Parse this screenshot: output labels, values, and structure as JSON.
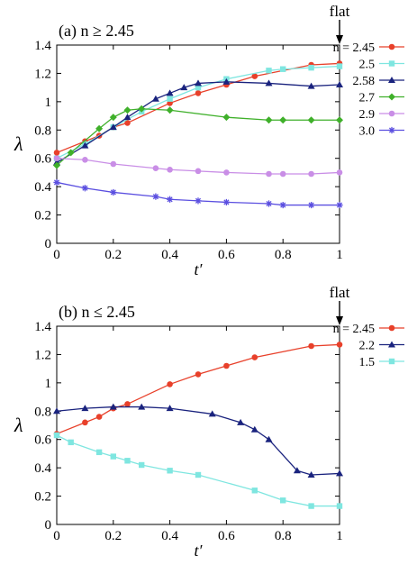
{
  "chart_data": [
    {
      "type": "line",
      "title": "(a) n ≥ 2.45",
      "annotation": "flat",
      "xlabel": "t′",
      "ylabel": "λ",
      "xlim": [
        0,
        1
      ],
      "ylim": [
        0,
        1.4
      ],
      "xticks": [
        0,
        0.2,
        0.4,
        0.6,
        0.8,
        1
      ],
      "yticks": [
        0,
        0.2,
        0.4,
        0.6,
        0.8,
        1,
        1.2,
        1.4
      ],
      "xtick_labels": [
        "0",
        "0.2",
        "0.4",
        "0.6",
        "0.8",
        "1"
      ],
      "ytick_labels": [
        "0",
        "0.2",
        "0.4",
        "0.6",
        "0.8",
        "1",
        "1.2",
        "1.4"
      ],
      "legend_position": "right",
      "series": [
        {
          "name": "n = 2.45",
          "color": "#e8402a",
          "marker": "circle",
          "x": [
            0,
            0.1,
            0.15,
            0.2,
            0.25,
            0.4,
            0.5,
            0.6,
            0.7,
            0.9,
            1
          ],
          "y": [
            0.64,
            0.72,
            0.76,
            0.82,
            0.85,
            0.99,
            1.06,
            1.12,
            1.18,
            1.26,
            1.27
          ]
        },
        {
          "name": "2.5",
          "color": "#7fe6e0",
          "marker": "square",
          "x": [
            0,
            0.1,
            0.2,
            0.3,
            0.4,
            0.5,
            0.6,
            0.75,
            0.8,
            0.9,
            1
          ],
          "y": [
            0.6,
            0.7,
            0.82,
            0.93,
            1.02,
            1.1,
            1.16,
            1.22,
            1.23,
            1.24,
            1.25
          ]
        },
        {
          "name": "2.58",
          "color": "#1a237e",
          "marker": "triangle",
          "x": [
            0,
            0.1,
            0.2,
            0.25,
            0.35,
            0.4,
            0.45,
            0.5,
            0.6,
            0.75,
            0.9,
            1
          ],
          "y": [
            0.57,
            0.69,
            0.82,
            0.89,
            1.02,
            1.06,
            1.1,
            1.13,
            1.14,
            1.13,
            1.11,
            1.12
          ]
        },
        {
          "name": "2.7",
          "color": "#3fb02a",
          "marker": "diamond",
          "x": [
            0,
            0.05,
            0.15,
            0.2,
            0.25,
            0.3,
            0.4,
            0.6,
            0.75,
            0.8,
            0.9,
            1
          ],
          "y": [
            0.55,
            0.64,
            0.81,
            0.89,
            0.94,
            0.95,
            0.94,
            0.89,
            0.87,
            0.87,
            0.87,
            0.87
          ]
        },
        {
          "name": "2.9",
          "color": "#c98ee6",
          "marker": "circle",
          "x": [
            0,
            0.1,
            0.2,
            0.35,
            0.4,
            0.5,
            0.6,
            0.75,
            0.8,
            0.9,
            1
          ],
          "y": [
            0.6,
            0.59,
            0.56,
            0.53,
            0.52,
            0.51,
            0.5,
            0.49,
            0.49,
            0.49,
            0.5
          ]
        },
        {
          "name": "3.0",
          "color": "#5b4fe0",
          "marker": "asterisk",
          "x": [
            0,
            0.1,
            0.2,
            0.35,
            0.4,
            0.5,
            0.6,
            0.75,
            0.8,
            0.9,
            1
          ],
          "y": [
            0.43,
            0.39,
            0.36,
            0.33,
            0.31,
            0.3,
            0.29,
            0.28,
            0.27,
            0.27,
            0.27
          ]
        }
      ]
    },
    {
      "type": "line",
      "title": "(b) n ≤ 2.45",
      "annotation": "flat",
      "xlabel": "t′",
      "ylabel": "λ",
      "xlim": [
        0,
        1
      ],
      "ylim": [
        0,
        1.4
      ],
      "xticks": [
        0,
        0.2,
        0.4,
        0.6,
        0.8,
        1
      ],
      "yticks": [
        0,
        0.2,
        0.4,
        0.6,
        0.8,
        1,
        1.2,
        1.4
      ],
      "xtick_labels": [
        "0",
        "0.2",
        "0.4",
        "0.6",
        "0.8",
        "1"
      ],
      "ytick_labels": [
        "0",
        "0.2",
        "0.4",
        "0.6",
        "0.8",
        "1",
        "1.2",
        "1.4"
      ],
      "legend_position": "right",
      "series": [
        {
          "name": "n = 2.45",
          "color": "#e8402a",
          "marker": "circle",
          "x": [
            0,
            0.1,
            0.15,
            0.2,
            0.25,
            0.4,
            0.5,
            0.6,
            0.7,
            0.9,
            1
          ],
          "y": [
            0.64,
            0.72,
            0.76,
            0.82,
            0.85,
            0.99,
            1.06,
            1.12,
            1.18,
            1.26,
            1.27
          ]
        },
        {
          "name": "2.2",
          "color": "#1a237e",
          "marker": "triangle",
          "x": [
            0,
            0.1,
            0.2,
            0.3,
            0.4,
            0.55,
            0.65,
            0.7,
            0.75,
            0.85,
            0.9,
            1
          ],
          "y": [
            0.8,
            0.82,
            0.83,
            0.83,
            0.82,
            0.78,
            0.72,
            0.67,
            0.6,
            0.38,
            0.35,
            0.36
          ]
        },
        {
          "name": "1.5",
          "color": "#7fe6e0",
          "marker": "square",
          "x": [
            0,
            0.05,
            0.15,
            0.2,
            0.25,
            0.3,
            0.4,
            0.5,
            0.7,
            0.8,
            0.9,
            1
          ],
          "y": [
            0.63,
            0.58,
            0.51,
            0.48,
            0.45,
            0.42,
            0.38,
            0.35,
            0.24,
            0.17,
            0.13,
            0.13
          ]
        }
      ]
    }
  ]
}
